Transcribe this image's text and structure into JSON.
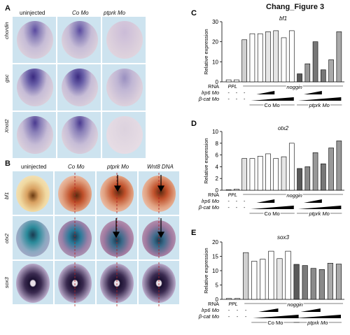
{
  "figure_title": "Chang_Figure 3",
  "panelA": {
    "letter": "A",
    "columns": [
      "uninjected",
      "Co Mo",
      "ptprk Mo"
    ],
    "rows": [
      "chordin",
      "gsc",
      "Xnot2"
    ]
  },
  "panelB": {
    "letter": "B",
    "columns": [
      "uninjected",
      "Co Mo",
      "ptprk Mo",
      "Wnt8 DNA"
    ],
    "rows": [
      "bf1",
      "otx2",
      "sox3"
    ]
  },
  "charts_common": {
    "ylabel": "Relative expression",
    "rows": {
      "rna": "RNA",
      "lrp6": "lrp6 Mo",
      "bcat": "β-cat Mo"
    },
    "rna_ppl": "PPL",
    "rna_noggin": "noggin",
    "group_co": "Co Mo",
    "group_ptprk": "ptprk Mo"
  },
  "chart_data": [
    {
      "panel": "C",
      "type": "bar",
      "title": "bf1",
      "ylabel": "Relative expression",
      "ylim": [
        0,
        30
      ],
      "yticks": [
        0,
        10,
        20,
        30
      ],
      "values": [
        1,
        1,
        21,
        24,
        24,
        25,
        25.5,
        22,
        25.5,
        4,
        9,
        20,
        6,
        11,
        25
      ],
      "colors": [
        "#ffffff",
        "#ffffff",
        "#d0d0d0",
        "#ffffff",
        "#ffffff",
        "#e6e6e6",
        "#e6e6e6",
        "#ffffff",
        "#ffffff",
        "#5a5a5a",
        "#9a9a9a",
        "#777777",
        "#777777",
        "#aaaaaa",
        "#aaaaaa"
      ]
    },
    {
      "panel": "D",
      "type": "bar",
      "title": "otx2",
      "ylabel": "Relative expression",
      "ylim": [
        0,
        10
      ],
      "yticks": [
        0,
        2,
        4,
        6,
        8,
        10
      ],
      "values": [
        0.1,
        0.2,
        5.4,
        5.4,
        5.8,
        6.2,
        5.4,
        5.7,
        8.0,
        3.7,
        4.0,
        6.4,
        4.5,
        7.2,
        8.4
      ],
      "colors": [
        "#ffffff",
        "#ffffff",
        "#e0e0e0",
        "#ffffff",
        "#ffffff",
        "#ffffff",
        "#ffffff",
        "#e6e6e6",
        "#ffffff",
        "#5a5a5a",
        "#8a8a8a",
        "#999999",
        "#777777",
        "#999999",
        "#999999"
      ]
    },
    {
      "panel": "E",
      "type": "bar",
      "title": "sox3",
      "ylabel": "Relative expression",
      "ylim": [
        0,
        20
      ],
      "yticks": [
        0,
        5,
        10,
        15,
        20
      ],
      "values": [
        0.3,
        0.3,
        16.3,
        13.3,
        14.0,
        16.8,
        14.2,
        16.8,
        12.2,
        11.8,
        10.8,
        10.4,
        12.6,
        12.3
      ],
      "colors": [
        "#ffffff",
        "#ffffff",
        "#d0d0d0",
        "#ffffff",
        "#ffffff",
        "#ffffff",
        "#e6e6e6",
        "#ffffff",
        "#5a5a5a",
        "#7a7a7a",
        "#8a8a8a",
        "#8a8a8a",
        "#aaaaaa",
        "#aaaaaa"
      ]
    }
  ]
}
